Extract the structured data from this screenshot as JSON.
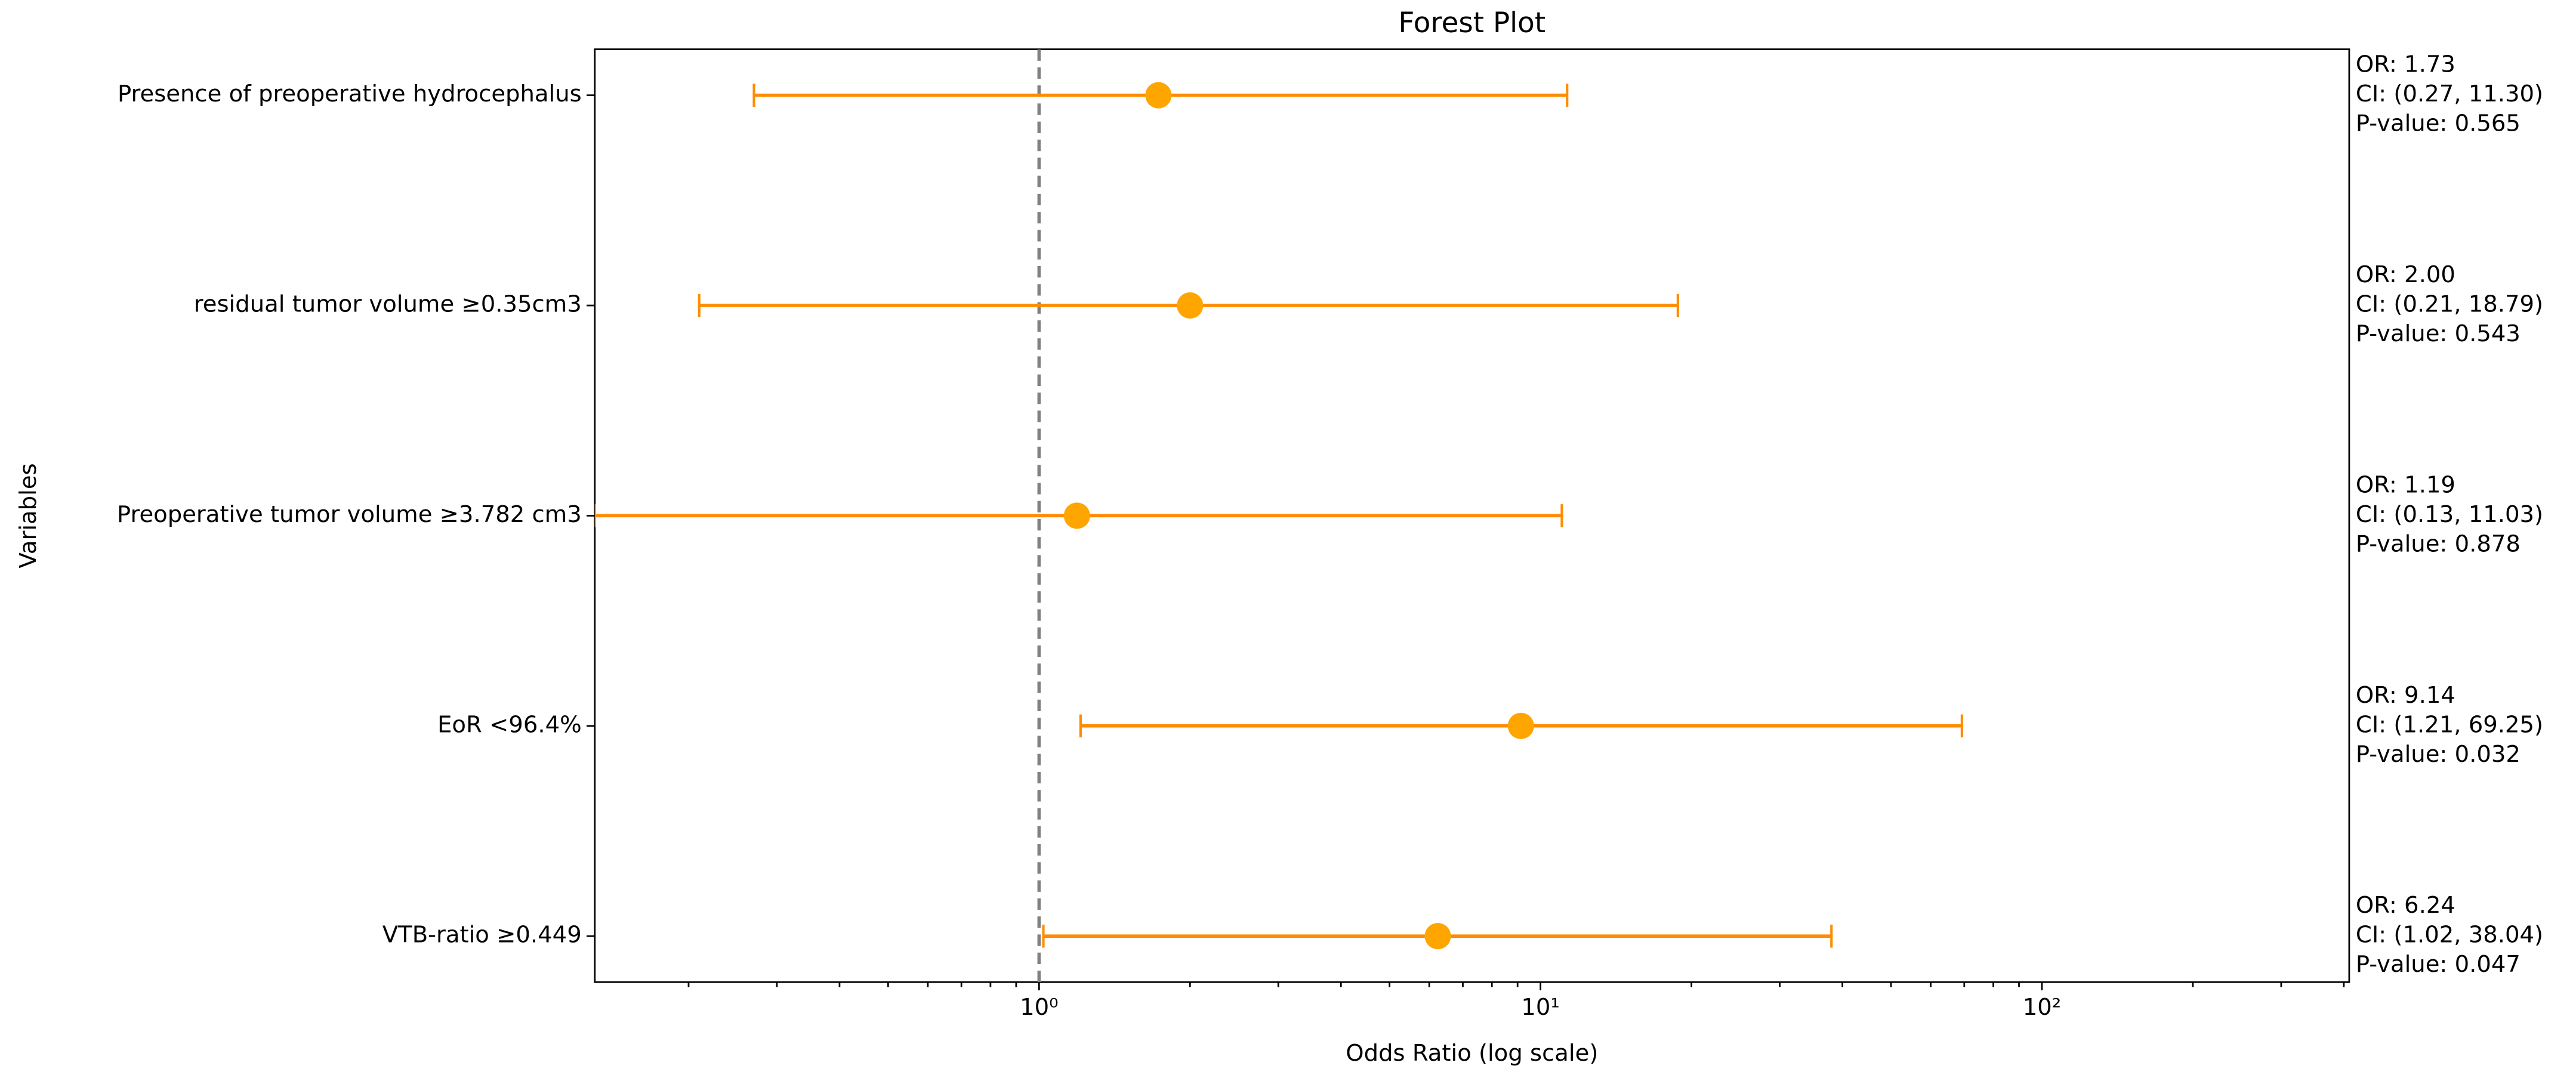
{
  "chart_data": {
    "type": "forest",
    "title": "Forest Plot",
    "x_label": "Odds Ratio (log scale)",
    "y_label": "Variables",
    "categories": [
      "Presence of preoperative hydrocephalus",
      "residual tumor volume ≥0.35cm3",
      "Preoperative tumor volume ≥3.782 cm3",
      "EoR <96.4%",
      "VTB-ratio ≥0.449"
    ],
    "values": [
      1.73,
      2.0,
      1.19,
      9.14,
      6.24
    ],
    "lower": [
      0.27,
      0.21,
      0.13,
      1.21,
      1.02
    ],
    "upper": [
      11.3,
      18.79,
      11.03,
      69.25,
      38.04
    ],
    "annotations": [
      [
        "OR: 1.73",
        "CI: (0.27, 11.30)",
        "P-value: 0.565"
      ],
      [
        "OR: 2.00",
        "CI: (0.21, 18.79)",
        "P-value: 0.543"
      ],
      [
        "OR: 1.19",
        "CI: (0.13, 11.03)",
        "P-value: 0.878"
      ],
      [
        "OR: 9.14",
        "CI: (1.21, 69.25)",
        "P-value: 0.032"
      ],
      [
        "OR: 6.24",
        "CI: (1.02, 38.04)",
        "P-value: 0.047"
      ]
    ],
    "color": "#ffa500",
    "errorbar_color": "#ff8c00",
    "reference_line": 1,
    "reference_color": "#808080",
    "xscale": "log",
    "xlim": [
      0.13,
      410
    ],
    "xticks": [
      {
        "value": 1,
        "label": "10⁰"
      },
      {
        "value": 10,
        "label": "10¹"
      },
      {
        "value": 100,
        "label": "10²"
      }
    ],
    "xminorticks": [
      0.2,
      0.3,
      0.4,
      0.5,
      0.6,
      0.7,
      0.8,
      0.9,
      2,
      3,
      4,
      5,
      6,
      7,
      8,
      9,
      20,
      30,
      40,
      50,
      60,
      70,
      80,
      90,
      200,
      300,
      400
    ]
  }
}
